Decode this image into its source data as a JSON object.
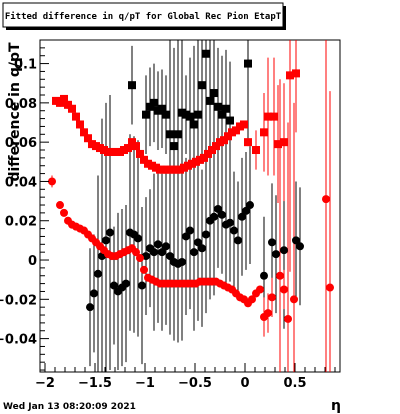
{
  "title": "Fitted difference in q/pT for Global Rec Pion EtapT",
  "timestamp": "Wed Jan 13 08:20:09 2021",
  "colors": {
    "series_black": "#000000",
    "series_red": "#ff0000",
    "frame": "#000000",
    "background": "#ffffff"
  },
  "chart_data": {
    "type": "scatter",
    "title": "Fitted difference in q/pT for Global Rec Pion EtapT",
    "xlabel": "η",
    "ylabel": "difference in q/pT",
    "xlim": [
      -2.05,
      0.95
    ],
    "ylim": [
      -0.057,
      0.112
    ],
    "grid": false,
    "legend": "none",
    "x_ticks": [
      -2,
      -1.5,
      -1,
      -0.5,
      0,
      0.5
    ],
    "x_tick_labels": [
      "−2",
      "−1.5",
      "−1",
      "−0.5",
      "0",
      "0.5"
    ],
    "y_ticks": [
      -0.04,
      -0.02,
      0,
      0.02,
      0.04,
      0.06,
      0.08,
      0.1
    ],
    "y_tick_labels": [
      "−0.04",
      "−0.02",
      "0",
      "0.02",
      "0.04",
      "0.06",
      "0.08",
      "0.1"
    ],
    "series": [
      {
        "color": "#000000",
        "marker": "square",
        "points": [
          [
            -1.13,
            0.089
          ],
          [
            -0.99,
            0.074
          ],
          [
            -0.95,
            0.078
          ],
          [
            -0.91,
            0.08
          ],
          [
            -0.87,
            0.076
          ],
          [
            -0.83,
            0.077
          ],
          [
            -0.79,
            0.074
          ],
          [
            -0.75,
            0.064
          ],
          [
            -0.71,
            0.058
          ],
          [
            -0.67,
            0.064
          ],
          [
            -0.63,
            0.075
          ],
          [
            -0.59,
            0.074
          ],
          [
            -0.55,
            0.073
          ],
          [
            -0.51,
            0.069
          ],
          [
            -0.47,
            0.074
          ],
          [
            -0.43,
            0.089
          ],
          [
            -0.39,
            0.105
          ],
          [
            -0.35,
            0.081
          ],
          [
            -0.31,
            0.085
          ],
          [
            -0.27,
            0.078
          ],
          [
            -0.23,
            0.074
          ],
          [
            -0.19,
            0.077
          ],
          [
            -0.15,
            0.071
          ],
          [
            0.03,
            0.1
          ]
        ],
        "err": [
          0.02,
          0.02,
          0.02,
          0.02,
          0.02,
          0.02,
          0.02,
          0.05,
          0.05,
          0.05,
          0.05,
          0.02,
          0.03,
          0.04,
          0.04,
          0.04,
          0.05,
          0.05,
          0.04,
          0.03,
          0.03,
          0.03,
          0.03,
          0.04
        ]
      },
      {
        "color": "#000000",
        "marker": "circle",
        "points": [
          [
            -1.55,
            -0.024
          ],
          [
            -1.51,
            -0.017
          ],
          [
            -1.47,
            -0.007
          ],
          [
            -1.43,
            0.002
          ],
          [
            -1.39,
            0.01
          ],
          [
            -1.35,
            0.014
          ],
          [
            -1.31,
            -0.013
          ],
          [
            -1.27,
            -0.016
          ],
          [
            -1.23,
            -0.014
          ],
          [
            -1.19,
            -0.012
          ],
          [
            -1.15,
            0.014
          ],
          [
            -1.11,
            0.013
          ],
          [
            -1.07,
            0.011
          ],
          [
            -1.03,
            -0.013
          ],
          [
            -0.99,
            0.002
          ],
          [
            -0.95,
            0.006
          ],
          [
            -0.91,
            0.004
          ],
          [
            -0.87,
            0.008
          ],
          [
            -0.83,
            0.004
          ],
          [
            -0.79,
            0.007
          ],
          [
            -0.75,
            0.002
          ],
          [
            -0.71,
            -0.001
          ],
          [
            -0.67,
            -0.002
          ],
          [
            -0.63,
            -0.001
          ],
          [
            -0.59,
            0.012
          ],
          [
            -0.55,
            0.015
          ],
          [
            -0.51,
            0.004
          ],
          [
            -0.47,
            0.009
          ],
          [
            -0.43,
            0.006
          ],
          [
            -0.39,
            0.013
          ],
          [
            -0.35,
            0.02
          ],
          [
            -0.31,
            0.022
          ],
          [
            -0.27,
            0.026
          ],
          [
            -0.23,
            0.023
          ],
          [
            -0.19,
            0.018
          ],
          [
            -0.15,
            0.019
          ],
          [
            -0.11,
            0.015
          ],
          [
            -0.07,
            0.01
          ],
          [
            -0.03,
            0.022
          ],
          [
            0.01,
            0.025
          ],
          [
            0.05,
            0.028
          ],
          [
            0.19,
            -0.008
          ],
          [
            0.27,
            0.009
          ],
          [
            0.31,
            0.003
          ],
          [
            0.39,
            0.005
          ],
          [
            0.51,
            0.01
          ],
          [
            0.55,
            0.007
          ]
        ],
        "err": [
          0.03,
          0.03,
          0.05,
          0.07,
          0.07,
          0.07,
          0.03,
          0.04,
          0.04,
          0.04,
          0.05,
          0.05,
          0.05,
          0.04,
          0.03,
          0.03,
          0.04,
          0.04,
          0.04,
          0.04,
          0.04,
          0.04,
          0.04,
          0.04,
          0.04,
          0.04,
          0.04,
          0.04,
          0.04,
          0.04,
          0.04,
          0.04,
          0.03,
          0.03,
          0.03,
          0.03,
          0.03,
          0.03,
          0.03,
          0.03,
          0.03,
          0.03,
          0.03,
          0.03,
          0.04,
          0.03,
          0.03
        ]
      },
      {
        "color": "#ff0000",
        "marker": "square",
        "points": [
          [
            -1.89,
            0.081
          ],
          [
            -1.85,
            0.08
          ],
          [
            -1.81,
            0.082
          ],
          [
            -1.77,
            0.079
          ],
          [
            -1.73,
            0.077
          ],
          [
            -1.69,
            0.073
          ],
          [
            -1.65,
            0.069
          ],
          [
            -1.61,
            0.065
          ],
          [
            -1.57,
            0.062
          ],
          [
            -1.53,
            0.059
          ],
          [
            -1.49,
            0.058
          ],
          [
            -1.45,
            0.057
          ],
          [
            -1.41,
            0.056
          ],
          [
            -1.37,
            0.055
          ],
          [
            -1.33,
            0.055
          ],
          [
            -1.29,
            0.055
          ],
          [
            -1.25,
            0.055
          ],
          [
            -1.21,
            0.056
          ],
          [
            -1.17,
            0.057
          ],
          [
            -1.13,
            0.06
          ],
          [
            -1.09,
            0.058
          ],
          [
            -1.05,
            0.054
          ],
          [
            -1.01,
            0.051
          ],
          [
            -0.97,
            0.049
          ],
          [
            -0.93,
            0.048
          ],
          [
            -0.89,
            0.047
          ],
          [
            -0.85,
            0.046
          ],
          [
            -0.81,
            0.046
          ],
          [
            -0.77,
            0.046
          ],
          [
            -0.73,
            0.046
          ],
          [
            -0.69,
            0.046
          ],
          [
            -0.65,
            0.046
          ],
          [
            -0.61,
            0.047
          ],
          [
            -0.57,
            0.048
          ],
          [
            -0.53,
            0.049
          ],
          [
            -0.49,
            0.05
          ],
          [
            -0.45,
            0.051
          ],
          [
            -0.41,
            0.052
          ],
          [
            -0.37,
            0.054
          ],
          [
            -0.33,
            0.056
          ],
          [
            -0.29,
            0.058
          ],
          [
            -0.25,
            0.06
          ],
          [
            -0.21,
            0.061
          ],
          [
            -0.17,
            0.063
          ],
          [
            -0.13,
            0.065
          ],
          [
            -0.09,
            0.066
          ],
          [
            -0.05,
            0.068
          ],
          [
            -0.01,
            0.069
          ],
          [
            0.03,
            0.06
          ],
          [
            0.11,
            0.056
          ],
          [
            0.19,
            0.065
          ],
          [
            0.23,
            0.073
          ],
          [
            0.29,
            0.073
          ],
          [
            0.33,
            0.059
          ],
          [
            0.39,
            0.06
          ],
          [
            0.45,
            0.094
          ],
          [
            0.51,
            0.095
          ]
        ],
        "err": [
          0.002,
          0.002,
          0.002,
          0.002,
          0.002,
          0.002,
          0.002,
          0.002,
          0.002,
          0.002,
          0.002,
          0.002,
          0.002,
          0.002,
          0.002,
          0.002,
          0.002,
          0.002,
          0.002,
          0.002,
          0.002,
          0.002,
          0.002,
          0.002,
          0.002,
          0.002,
          0.002,
          0.002,
          0.002,
          0.002,
          0.002,
          0.002,
          0.002,
          0.002,
          0.002,
          0.002,
          0.002,
          0.002,
          0.002,
          0.002,
          0.002,
          0.002,
          0.002,
          0.002,
          0.002,
          0.002,
          0.002,
          0.002,
          0.002,
          0.01,
          0.02,
          0.03,
          0.03,
          0.03,
          0.03,
          0.1,
          0.03
        ]
      },
      {
        "color": "#ff0000",
        "marker": "circle",
        "points": [
          [
            -1.93,
            0.04
          ],
          [
            -1.85,
            0.028
          ],
          [
            -1.81,
            0.024
          ],
          [
            -1.77,
            0.02
          ],
          [
            -1.73,
            0.018
          ],
          [
            -1.69,
            0.017
          ],
          [
            -1.65,
            0.016
          ],
          [
            -1.61,
            0.015
          ],
          [
            -1.57,
            0.013
          ],
          [
            -1.53,
            0.011
          ],
          [
            -1.49,
            0.009
          ],
          [
            -1.45,
            0.007
          ],
          [
            -1.41,
            0.005
          ],
          [
            -1.37,
            0.003
          ],
          [
            -1.33,
            0.002
          ],
          [
            -1.29,
            0.002
          ],
          [
            -1.25,
            0.003
          ],
          [
            -1.21,
            0.004
          ],
          [
            -1.17,
            0.005
          ],
          [
            -1.13,
            0.006
          ],
          [
            -1.09,
            0.004
          ],
          [
            -1.05,
            0.001
          ],
          [
            -1.01,
            -0.005
          ],
          [
            -0.97,
            -0.009
          ],
          [
            -0.93,
            -0.01
          ],
          [
            -0.89,
            -0.011
          ],
          [
            -0.85,
            -0.012
          ],
          [
            -0.81,
            -0.012
          ],
          [
            -0.77,
            -0.012
          ],
          [
            -0.73,
            -0.012
          ],
          [
            -0.69,
            -0.012
          ],
          [
            -0.65,
            -0.012
          ],
          [
            -0.61,
            -0.012
          ],
          [
            -0.57,
            -0.012
          ],
          [
            -0.53,
            -0.012
          ],
          [
            -0.49,
            -0.012
          ],
          [
            -0.45,
            -0.011
          ],
          [
            -0.41,
            -0.011
          ],
          [
            -0.37,
            -0.011
          ],
          [
            -0.33,
            -0.011
          ],
          [
            -0.29,
            -0.011
          ],
          [
            -0.25,
            -0.012
          ],
          [
            -0.21,
            -0.013
          ],
          [
            -0.17,
            -0.014
          ],
          [
            -0.13,
            -0.015
          ],
          [
            -0.09,
            -0.017
          ],
          [
            -0.05,
            -0.019
          ],
          [
            -0.01,
            -0.02
          ],
          [
            0.03,
            -0.022
          ],
          [
            0.07,
            -0.02
          ],
          [
            0.11,
            -0.017
          ],
          [
            0.15,
            -0.015
          ],
          [
            0.19,
            -0.029
          ],
          [
            0.23,
            -0.027
          ],
          [
            0.27,
            -0.019
          ],
          [
            0.35,
            -0.008
          ],
          [
            0.39,
            -0.015
          ],
          [
            0.43,
            -0.03
          ],
          [
            0.49,
            -0.02
          ],
          [
            0.81,
            0.031
          ],
          [
            0.85,
            -0.014
          ]
        ],
        "err": [
          0.003,
          0.002,
          0.002,
          0.002,
          0.002,
          0.002,
          0.002,
          0.002,
          0.002,
          0.002,
          0.002,
          0.002,
          0.002,
          0.002,
          0.002,
          0.002,
          0.002,
          0.002,
          0.002,
          0.002,
          0.002,
          0.002,
          0.002,
          0.002,
          0.002,
          0.002,
          0.002,
          0.002,
          0.002,
          0.002,
          0.002,
          0.002,
          0.002,
          0.002,
          0.002,
          0.002,
          0.002,
          0.002,
          0.002,
          0.002,
          0.002,
          0.002,
          0.002,
          0.002,
          0.002,
          0.002,
          0.002,
          0.002,
          0.002,
          0.002,
          0.002,
          0.002,
          0.01,
          0.01,
          0.01,
          0.1,
          0.01,
          0.1,
          0.1,
          0.1,
          0.1
        ]
      }
    ]
  }
}
